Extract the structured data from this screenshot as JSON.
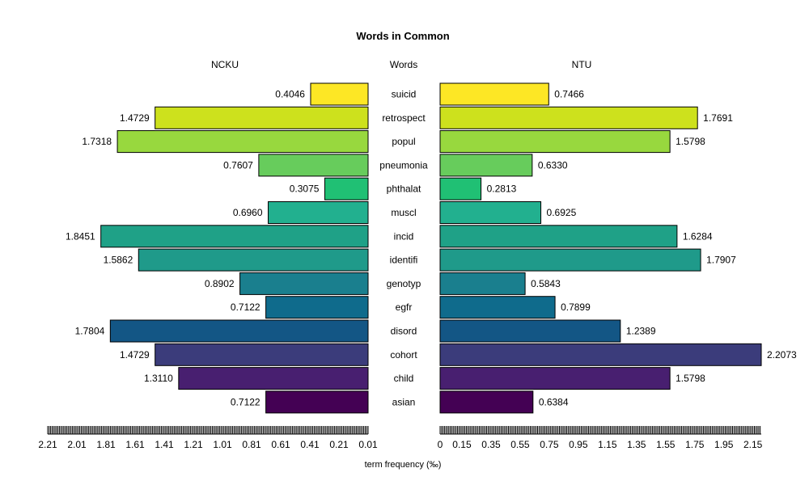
{
  "chart_data": {
    "type": "bar",
    "title": "Words in Common",
    "xlabel": "term frequency (‰)",
    "center_label": "Words",
    "categories": [
      "suicid",
      "retrospect",
      "popul",
      "pneumonia",
      "phthalat",
      "muscl",
      "incid",
      "identifi",
      "genotyp",
      "egfr",
      "disord",
      "cohort",
      "child",
      "asian"
    ],
    "series": [
      {
        "name": "NCKU",
        "values": [
          0.4046,
          1.4729,
          1.7318,
          0.7607,
          0.3075,
          0.696,
          1.8451,
          1.5862,
          0.8902,
          0.7122,
          1.7804,
          1.4729,
          1.311,
          0.7122
        ]
      },
      {
        "name": "NTU",
        "values": [
          0.7466,
          1.7691,
          1.5798,
          0.633,
          0.2813,
          0.6925,
          1.6284,
          1.7907,
          0.5843,
          0.7899,
          1.2389,
          2.2073,
          1.5798,
          0.6384
        ]
      }
    ],
    "value_labels": {
      "NCKU": [
        "0.4046",
        "1.4729",
        "1.7318",
        "0.7607",
        "0.3075",
        "0.6960",
        "1.8451",
        "1.5862",
        "0.8902",
        "0.7122",
        "1.7804",
        "1.4729",
        "1.3110",
        "0.7122"
      ],
      "NTU": [
        "0.7466",
        "1.7691",
        "1.5798",
        "0.6330",
        "0.2813",
        "0.6925",
        "1.6284",
        "1.7907",
        "0.5843",
        "0.7899",
        "1.2389",
        "2.2073",
        "1.5798",
        "0.6384"
      ]
    },
    "colors": [
      "#fde725",
      "#cde11d",
      "#98d83e",
      "#67cc5c",
      "#20c074",
      "#22b08f",
      "#1fa187",
      "#1f9a8a",
      "#1a7f8e",
      "#0f6b8c",
      "#135685",
      "#3b3c7b",
      "#481f70",
      "#440154"
    ],
    "left_axis": {
      "range": [
        0.01,
        2.21
      ],
      "tick_labels": [
        "2.21",
        "2.01",
        "1.81",
        "1.61",
        "1.41",
        "1.21",
        "1.01",
        "0.81",
        "0.61",
        "0.41",
        "0.21",
        "0.01"
      ]
    },
    "right_axis": {
      "range": [
        0,
        2.2073
      ],
      "tick_labels": [
        "0",
        "0.15",
        "0.35",
        "0.55",
        "0.75",
        "0.95",
        "1.15",
        "1.35",
        "1.55",
        "1.75",
        "1.95",
        "2.15"
      ]
    },
    "grid": false,
    "legend": "none"
  }
}
